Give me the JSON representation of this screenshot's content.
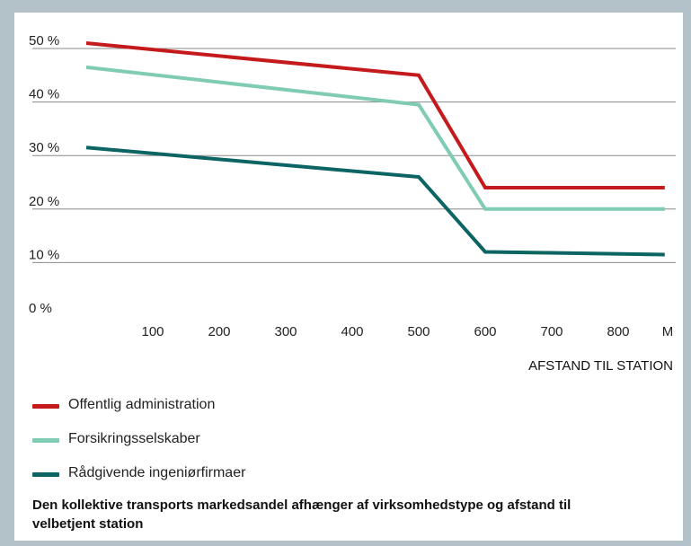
{
  "chart_data": {
    "type": "line",
    "x": [
      0,
      500,
      600,
      870
    ],
    "xticks": [
      100,
      200,
      300,
      400,
      500,
      600,
      700,
      800
    ],
    "xunit": "M",
    "xlabel": "AFSTAND TIL STATION",
    "yticks": [
      "0 %",
      "10 %",
      "20 %",
      "30 %",
      "40 %",
      "50 %"
    ],
    "ylim": [
      0,
      50
    ],
    "grid": true,
    "legend_position": "bottom-left",
    "series": [
      {
        "name": "Offentlig administration",
        "color": "#c41a1b",
        "values": [
          51,
          45,
          24,
          24
        ]
      },
      {
        "name": "Forsikringsselskaber",
        "color": "#7fcbb4",
        "values": [
          46.5,
          39.5,
          20,
          20
        ]
      },
      {
        "name": "Rådgivende ingeniørfirmaer",
        "color": "#0c6463",
        "values": [
          31.5,
          26,
          12,
          11.5
        ]
      }
    ]
  },
  "caption": "Den kollektive transports markedsandel afhænger af virksomhedstype og afstand til velbetjent station"
}
